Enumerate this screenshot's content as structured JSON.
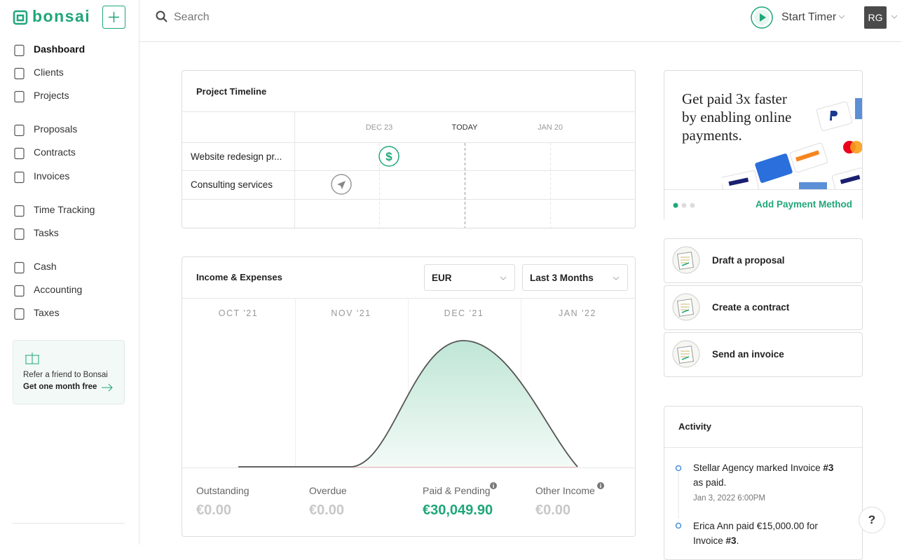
{
  "sidebar": {
    "logo": "bonsai",
    "nav": [
      {
        "label": "Dashboard"
      },
      {
        "label": "Clients"
      },
      {
        "label": "Projects"
      },
      {
        "label": "Proposals"
      },
      {
        "label": "Contracts"
      },
      {
        "label": "Invoices"
      },
      {
        "label": "Time Tracking"
      },
      {
        "label": "Tasks"
      },
      {
        "label": "Cash"
      },
      {
        "label": "Accounting"
      },
      {
        "label": "Taxes"
      }
    ],
    "referral": {
      "text": "Refer a friend to Bonsai",
      "link": "Get one month free"
    }
  },
  "topbar": {
    "search": "Search",
    "timer": "Start Timer",
    "avatar": "RG"
  },
  "timeline": {
    "title": "Project Timeline",
    "columns": [
      "DEC 23",
      "TODAY",
      "JAN 20"
    ],
    "rows": [
      "Website redesign pr...",
      "Consulting services"
    ]
  },
  "income": {
    "title": "Income & Expenses",
    "currency": "EUR",
    "range": "Last 3 Months",
    "months": [
      "OCT '21",
      "NOV '21",
      "DEC '21",
      "JAN '22"
    ],
    "stats": [
      {
        "label": "Outstanding",
        "value": "€0.00"
      },
      {
        "label": "Overdue",
        "value": "€0.00"
      },
      {
        "label": "Paid & Pending",
        "value": "€30,049.90"
      },
      {
        "label": "Other Income",
        "value": "€0.00"
      }
    ]
  },
  "payments": {
    "headline": [
      "Get paid 3x faster",
      "by enabling online",
      "payments."
    ],
    "action": "Add Payment Method"
  },
  "actions": [
    "Draft a proposal",
    "Create a contract",
    "Send an invoice"
  ],
  "activity": {
    "title": "Activity",
    "items": [
      {
        "text": "Stellar Agency marked Invoice ",
        "bold": "#3",
        "line2": "as paid.",
        "date": "Jan 3, 2022 6:00PM"
      },
      {
        "text": "Erica Ann paid €15,000.00 for",
        "line2": "Invoice ",
        "bold": "#3",
        "end": "."
      }
    ]
  },
  "help": "?"
}
